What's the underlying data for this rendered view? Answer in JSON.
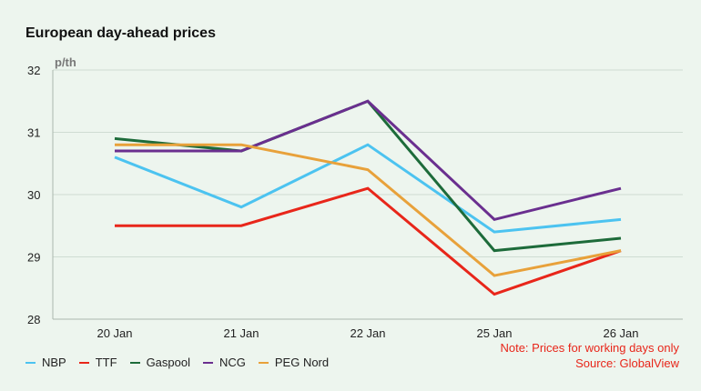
{
  "chart_data": {
    "type": "line",
    "title": "European day-ahead prices",
    "unit_label": "p/th",
    "categories": [
      "20 Jan",
      "21 Jan",
      "22 Jan",
      "25 Jan",
      "26 Jan"
    ],
    "ylim": [
      28,
      32
    ],
    "yticks": [
      "28",
      "29",
      "30",
      "31",
      "32"
    ],
    "grid": true,
    "legend_position": "bottom-left",
    "series": [
      {
        "name": "NBP",
        "color": "#4cc3f0",
        "values": [
          30.6,
          29.8,
          30.8,
          29.4,
          29.6
        ]
      },
      {
        "name": "TTF",
        "color": "#e8261a",
        "values": [
          29.5,
          29.5,
          30.1,
          28.4,
          29.1
        ]
      },
      {
        "name": "Gaspool",
        "color": "#1d6b3a",
        "values": [
          30.9,
          30.7,
          31.5,
          29.1,
          29.3
        ]
      },
      {
        "name": "NCG",
        "color": "#6a2f8f",
        "values": [
          30.7,
          30.7,
          31.5,
          29.6,
          30.1
        ]
      },
      {
        "name": "PEG Nord",
        "color": "#e8a13a",
        "values": [
          30.8,
          30.8,
          30.4,
          28.7,
          29.1
        ]
      }
    ],
    "note": "Note: Prices for working days only",
    "source": "Source: GlobalView"
  }
}
